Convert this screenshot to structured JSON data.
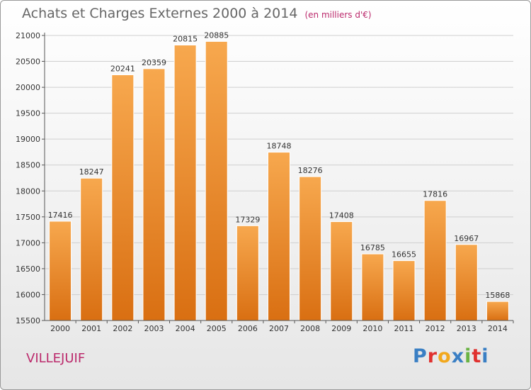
{
  "title": "Achats et Charges Externes 2000 à 2014",
  "subtitle": "(en milliers d'€)",
  "location": "VILLEJUIF",
  "logo": {
    "letters": [
      "P",
      "r",
      "o",
      "x",
      "i",
      "t",
      "i"
    ]
  },
  "colors": {
    "bar_light": "#f7a84e",
    "bar_dark": "#d96f12",
    "title": "#666666",
    "accent": "#bb2a6c",
    "grid": "#cfcfcf",
    "logo": [
      "#3a7fc4",
      "#e0312f",
      "#f2a81d",
      "#3a7fc4",
      "#6ab344",
      "#e0312f",
      "#3a7fc4"
    ]
  },
  "chart_data": {
    "type": "bar",
    "title": "Achats et Charges Externes 2000 à 2014",
    "xlabel": "",
    "ylabel": "en milliers d'€",
    "categories": [
      "2000",
      "2001",
      "2002",
      "2003",
      "2004",
      "2005",
      "2006",
      "2007",
      "2008",
      "2009",
      "2010",
      "2011",
      "2012",
      "2013",
      "2014"
    ],
    "values": [
      17416,
      18247,
      20241,
      20359,
      20815,
      20885,
      17329,
      18748,
      18276,
      17408,
      16785,
      16655,
      17816,
      16967,
      15868
    ],
    "ylim": [
      15500,
      21000
    ],
    "yticks": [
      15500,
      16000,
      16500,
      17000,
      17500,
      18000,
      18500,
      19000,
      19500,
      20000,
      20500,
      21000
    ],
    "grid": true
  }
}
